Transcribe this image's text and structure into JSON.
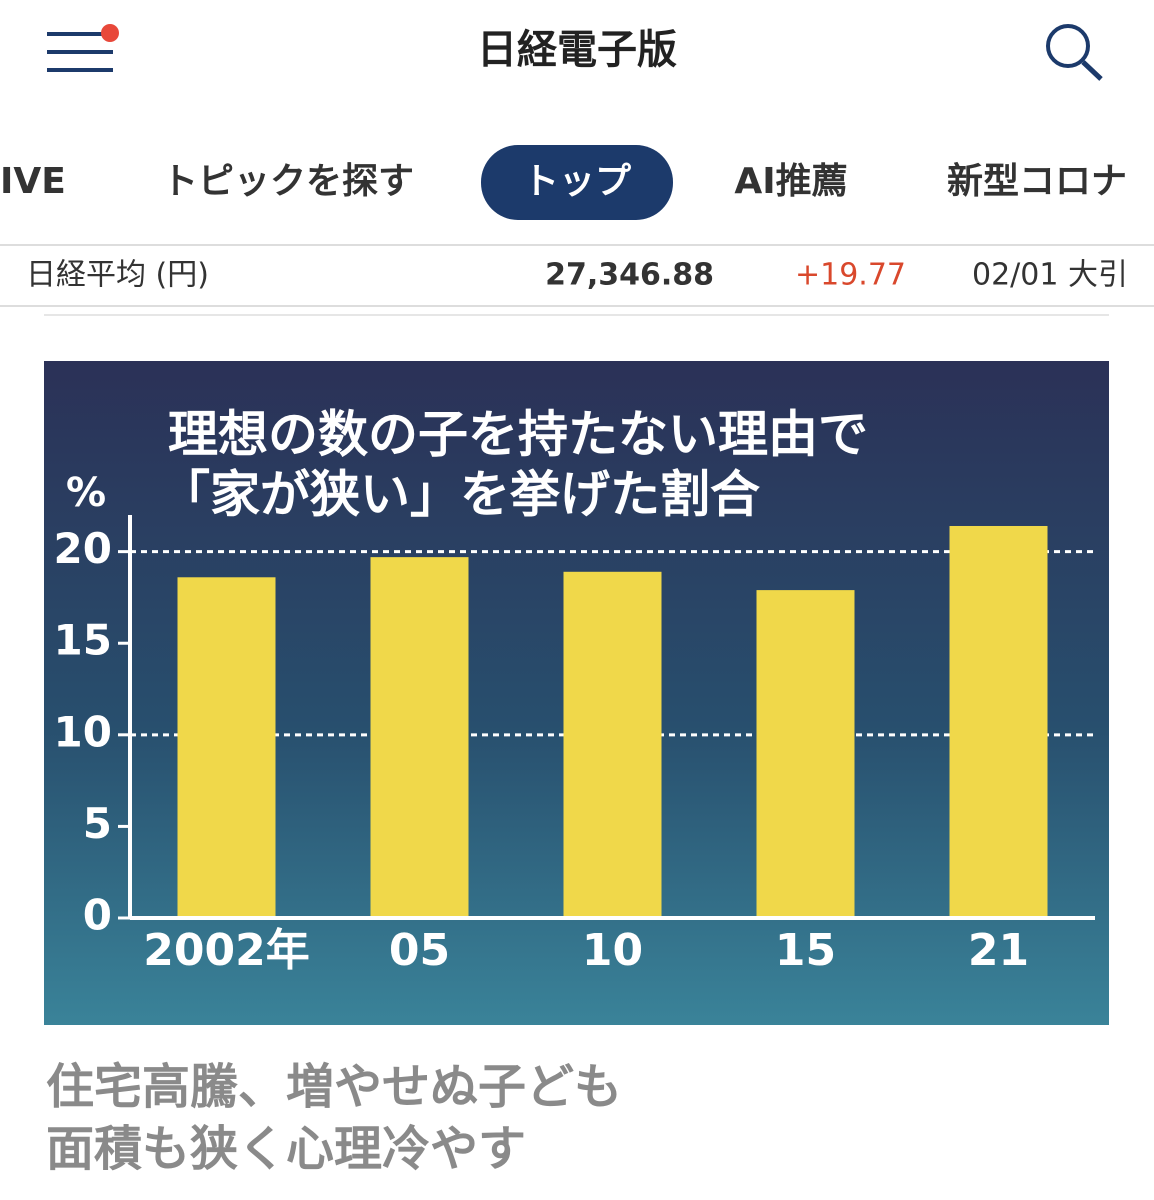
{
  "header": {
    "title": "日経電子版"
  },
  "tabs": [
    "IVE",
    "トピックを探す",
    "トップ",
    "AI推薦",
    "新型コロナ"
  ],
  "ticker": {
    "name": "日経平均 (円)",
    "price": "27,346.88",
    "change": "+19.77",
    "time": "02/01 大引"
  },
  "chart_data": {
    "type": "bar",
    "title_lines": [
      "理想の数の子を持たない理由で",
      "「家が狭い」を挙げた割合"
    ],
    "y_unit": "%",
    "categories": [
      "2002年",
      "05",
      "10",
      "15",
      "21"
    ],
    "values": [
      18.6,
      19.7,
      18.9,
      17.9,
      21.4
    ],
    "color": "#f0d84a",
    "ylim": [
      0,
      22
    ],
    "yticks": [
      0,
      5,
      10,
      15,
      20
    ],
    "grid": true,
    "gridlines": [
      10,
      20
    ]
  },
  "headline": {
    "lines": [
      "住宅高騰、増やせぬ子ども",
      "面積も狭く心理冷やす"
    ]
  }
}
